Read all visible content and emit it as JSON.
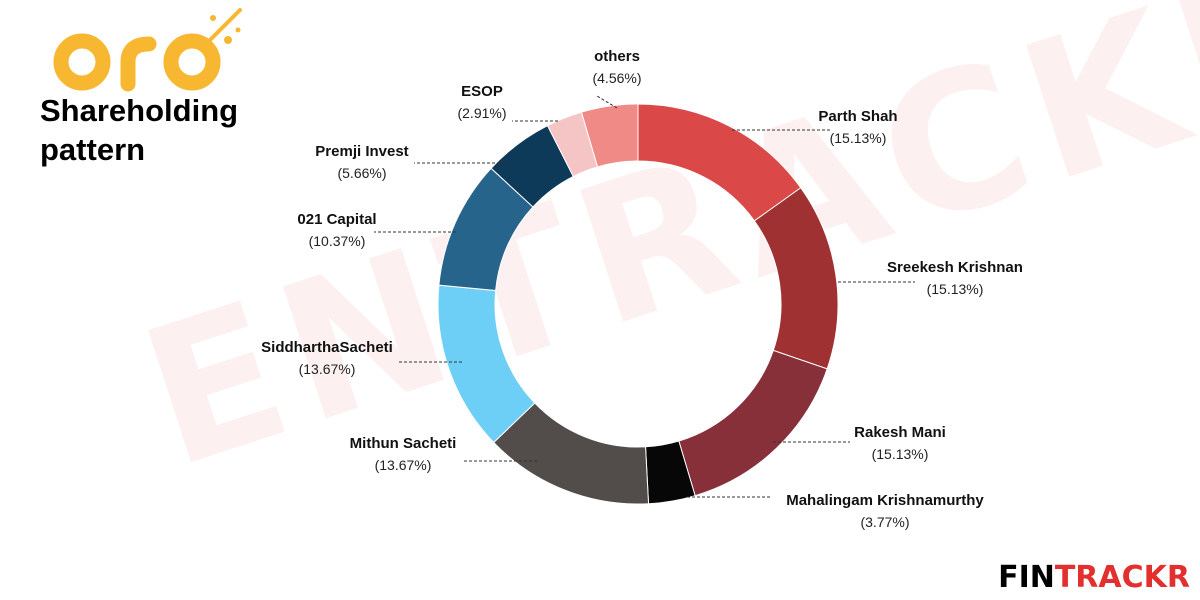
{
  "logo": {
    "text": "oro",
    "color": "#f7b731",
    "icon": "sparkle-icon"
  },
  "title_line1": "Shareholding",
  "title_line2": "pattern",
  "watermark": "ENTRACKR",
  "brand": {
    "part1": "FIN",
    "part2": "TRACKR",
    "icon": "fintrackr-logo-icon"
  },
  "chart_data": {
    "type": "pie",
    "variant": "donut",
    "slices": [
      {
        "label": "Parth Shah",
        "pct_label": "(15.13%)",
        "value": 15.13,
        "color": "#db4848"
      },
      {
        "label": "Sreekesh Krishnan",
        "pct_label": "(15.13%)",
        "value": 15.13,
        "color": "#a03132"
      },
      {
        "label": "Rakesh Mani",
        "pct_label": "(15.13%)",
        "value": 15.13,
        "color": "#87303a"
      },
      {
        "label": "Mahalingam Krishnamurthy",
        "pct_label": "(3.77%)",
        "value": 3.77,
        "color": "#070707"
      },
      {
        "label": "Mithun Sacheti",
        "pct_label": "(13.67%)",
        "value": 13.67,
        "color": "#524d4b"
      },
      {
        "label": "SiddharthaSacheti",
        "pct_label": "(13.67%)",
        "value": 13.67,
        "color": "#6dcff5"
      },
      {
        "label": "021 Capital",
        "pct_label": "(10.37%)",
        "value": 10.37,
        "color": "#27648b"
      },
      {
        "label": "Premji Invest",
        "pct_label": "(5.66%)",
        "value": 5.66,
        "color": "#0e3a59"
      },
      {
        "label": "ESOP",
        "pct_label": "(2.91%)",
        "value": 2.91,
        "color": "#f5c5c6"
      },
      {
        "label": "others",
        "pct_label": "(4.56%)",
        "value": 4.56,
        "color": "#ef8a86"
      }
    ]
  }
}
